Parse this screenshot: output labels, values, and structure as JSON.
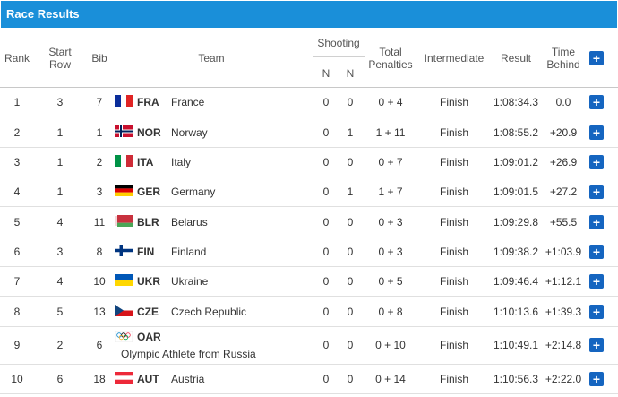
{
  "title": "Race Results",
  "headers": {
    "rank": "Rank",
    "start_row_1": "Start",
    "start_row_2": "Row",
    "bib": "Bib",
    "team": "Team",
    "shooting": "Shooting",
    "n1": "N",
    "n2": "N",
    "total_1": "Total",
    "total_2": "Penalties",
    "intermediate": "Intermediate",
    "result": "Result",
    "time_1": "Time",
    "time_2": "Behind",
    "expand_all": "+"
  },
  "rows": [
    {
      "rank": "1",
      "start_row": "3",
      "bib": "7",
      "code": "FRA",
      "team": "France",
      "s1": "0",
      "s2": "0",
      "pen": "0 + 4",
      "inter": "Finish",
      "result": "1:08:34.3",
      "behind": "0.0",
      "plus": "+",
      "flag": "fra"
    },
    {
      "rank": "2",
      "start_row": "1",
      "bib": "1",
      "code": "NOR",
      "team": "Norway",
      "s1": "0",
      "s2": "1",
      "pen": "1 + 11",
      "inter": "Finish",
      "result": "1:08:55.2",
      "behind": "+20.9",
      "plus": "+",
      "flag": "nor"
    },
    {
      "rank": "3",
      "start_row": "1",
      "bib": "2",
      "code": "ITA",
      "team": "Italy",
      "s1": "0",
      "s2": "0",
      "pen": "0 + 7",
      "inter": "Finish",
      "result": "1:09:01.2",
      "behind": "+26.9",
      "plus": "+",
      "flag": "ita"
    },
    {
      "rank": "4",
      "start_row": "1",
      "bib": "3",
      "code": "GER",
      "team": "Germany",
      "s1": "0",
      "s2": "1",
      "pen": "1 + 7",
      "inter": "Finish",
      "result": "1:09:01.5",
      "behind": "+27.2",
      "plus": "+",
      "flag": "ger"
    },
    {
      "rank": "5",
      "start_row": "4",
      "bib": "11",
      "code": "BLR",
      "team": "Belarus",
      "s1": "0",
      "s2": "0",
      "pen": "0 + 3",
      "inter": "Finish",
      "result": "1:09:29.8",
      "behind": "+55.5",
      "plus": "+",
      "flag": "blr"
    },
    {
      "rank": "6",
      "start_row": "3",
      "bib": "8",
      "code": "FIN",
      "team": "Finland",
      "s1": "0",
      "s2": "0",
      "pen": "0 + 3",
      "inter": "Finish",
      "result": "1:09:38.2",
      "behind": "+1:03.9",
      "plus": "+",
      "flag": "fin"
    },
    {
      "rank": "7",
      "start_row": "4",
      "bib": "10",
      "code": "UKR",
      "team": "Ukraine",
      "s1": "0",
      "s2": "0",
      "pen": "0 + 5",
      "inter": "Finish",
      "result": "1:09:46.4",
      "behind": "+1:12.1",
      "plus": "+",
      "flag": "ukr"
    },
    {
      "rank": "8",
      "start_row": "5",
      "bib": "13",
      "code": "CZE",
      "team": "Czech Republic",
      "s1": "0",
      "s2": "0",
      "pen": "0 + 8",
      "inter": "Finish",
      "result": "1:10:13.6",
      "behind": "+1:39.3",
      "plus": "+",
      "flag": "cze"
    },
    {
      "rank": "9",
      "start_row": "2",
      "bib": "6",
      "code": "OAR",
      "team": "Olympic Athlete from Russia",
      "s1": "0",
      "s2": "0",
      "pen": "0 + 10",
      "inter": "Finish",
      "result": "1:10:49.1",
      "behind": "+2:14.8",
      "plus": "+",
      "flag": "oar"
    },
    {
      "rank": "10",
      "start_row": "6",
      "bib": "18",
      "code": "AUT",
      "team": "Austria",
      "s1": "0",
      "s2": "0",
      "pen": "0 + 14",
      "inter": "Finish",
      "result": "1:10:56.3",
      "behind": "+2:22.0",
      "plus": "+",
      "flag": "aut"
    }
  ],
  "colors": {
    "title_bar": "#1a8fd9",
    "plus_button": "#1565c0"
  }
}
